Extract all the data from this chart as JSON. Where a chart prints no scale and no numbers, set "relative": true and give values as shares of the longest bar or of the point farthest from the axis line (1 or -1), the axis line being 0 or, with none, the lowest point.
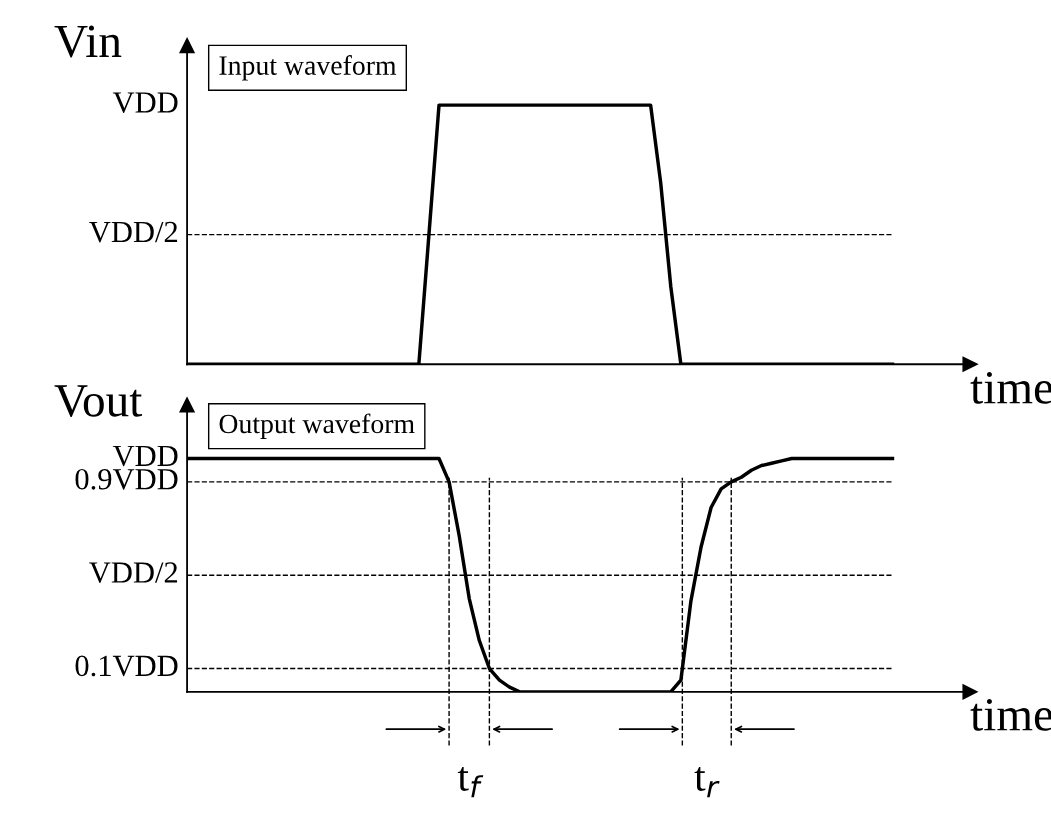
{
  "chart_data": [
    {
      "type": "line",
      "title": "Input waveform",
      "ylabel": "Vin",
      "xlabel": "time",
      "relative": true,
      "categories": [
        null,
        null,
        null,
        null,
        null,
        null,
        null,
        null,
        null,
        null,
        null,
        null,
        null,
        null,
        null,
        null,
        null,
        null,
        null,
        null,
        null,
        null,
        null,
        null,
        null,
        null,
        null,
        null,
        null,
        null,
        null,
        null,
        null,
        null,
        null,
        null,
        null,
        null,
        null,
        null,
        null,
        null,
        null,
        null,
        null,
        null,
        null,
        null,
        null,
        null,
        null,
        null,
        null,
        null,
        null,
        null,
        null,
        null,
        null,
        null,
        null,
        null,
        null,
        null,
        null,
        null,
        null,
        null,
        null,
        null,
        null
      ],
      "series": [
        {
          "color": "#000000",
          "values": [
            0,
            0,
            0,
            0,
            0,
            0,
            0,
            0,
            0,
            0,
            0,
            0,
            0,
            0,
            0,
            0,
            0,
            0,
            0,
            0,
            0,
            0,
            0,
            0,
            0.5,
            1,
            1,
            1,
            1,
            1,
            1,
            1,
            1,
            1,
            1,
            1,
            1,
            1,
            1,
            1,
            1,
            1,
            1,
            1,
            1,
            1,
            1,
            0.7,
            0.3,
            0,
            0,
            0,
            0,
            0,
            0,
            0,
            0,
            0,
            0,
            0,
            0,
            0,
            0,
            0,
            0,
            0,
            0,
            0,
            0,
            0,
            0
          ]
        }
      ],
      "annotations": [
        "VDD"
      ],
      "ref_lines": [
        {
          "axis": "y",
          "value": 0.5,
          "label": "VDD/2",
          "color": "#000000",
          "line_style": "dashed"
        }
      ],
      "legend": false,
      "marker": "none",
      "line_style": "solid"
    },
    {
      "type": "line",
      "title": "Output waveform",
      "ylabel": "Vout",
      "xlabel": "time",
      "relative": true,
      "categories": [
        null,
        null,
        null,
        null,
        null,
        null,
        null,
        null,
        null,
        null,
        null,
        null,
        null,
        null,
        null,
        null,
        null,
        null,
        null,
        null,
        null,
        null,
        null,
        null,
        null,
        null,
        null,
        null,
        null,
        null,
        null,
        null,
        null,
        null,
        null,
        null,
        null,
        null,
        null,
        null,
        null,
        null,
        null,
        null,
        null,
        null,
        null,
        null,
        null,
        null,
        null,
        null,
        null,
        null,
        null,
        null,
        null,
        null,
        null,
        null,
        null,
        null,
        null,
        null,
        null,
        null,
        null,
        null,
        null,
        null,
        null
      ],
      "series": [
        {
          "color": "#000000",
          "values": [
            1,
            1,
            1,
            1,
            1,
            1,
            1,
            1,
            1,
            1,
            1,
            1,
            1,
            1,
            1,
            1,
            1,
            1,
            1,
            1,
            1,
            1,
            1,
            1,
            1,
            1,
            0.9,
            0.67,
            0.4,
            0.22,
            0.1,
            0.05,
            0.02,
            0,
            0,
            0,
            0,
            0,
            0,
            0,
            0,
            0,
            0,
            0,
            0,
            0,
            0,
            0,
            0,
            0.05,
            0.39,
            0.62,
            0.79,
            0.87,
            0.9,
            0.92,
            0.95,
            0.97,
            0.98,
            0.99,
            1,
            1,
            1,
            1,
            1,
            1,
            1,
            1,
            1,
            1,
            1
          ]
        }
      ],
      "annotations": [
        "VDD",
        "t$_{f}$",
        "t$_{r}$"
      ],
      "grid": "x",
      "ref_lines": [
        {
          "axis": "y",
          "value": 0.9,
          "label": "0.9VDD",
          "color": "#000000",
          "line_style": "dashed"
        },
        {
          "axis": "y",
          "value": 0.5,
          "label": "VDD/2",
          "color": "#000000",
          "line_style": "dashed"
        },
        {
          "axis": "y",
          "value": 0.1,
          "label": "0.1VDD",
          "color": "#000000",
          "line_style": "dashed"
        }
      ],
      "legend": false,
      "marker": "none",
      "line_style": "solid"
    }
  ]
}
